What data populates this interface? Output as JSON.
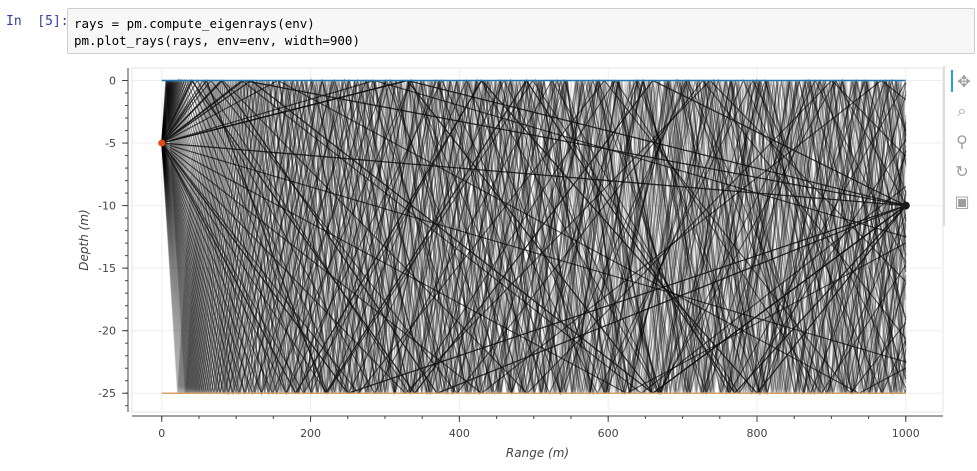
{
  "cell": {
    "prompt": "In  [5]:",
    "code_lines": [
      "rays = pm.compute_eigenrays(env)",
      "pm.plot_rays(rays, env=env, width=900)"
    ]
  },
  "toolbar": {
    "tools": [
      "pan-icon",
      "box-zoom-icon",
      "wheel-zoom-icon",
      "reset-icon",
      "save-icon"
    ]
  },
  "colors": {
    "surface": "#1f77b4",
    "bottom": "#d9a066",
    "source": "#e34a16",
    "receiver": "#1a1a1a",
    "ray": "#000000"
  },
  "chart_data": {
    "type": "line",
    "xlabel": "Range (m)",
    "ylabel": "Depth (m)",
    "xlim": [
      -40,
      1050
    ],
    "ylim": [
      -26.5,
      1
    ],
    "x_ticks": [
      0,
      200,
      400,
      600,
      800,
      1000
    ],
    "y_ticks": [
      0,
      -5,
      -10,
      -15,
      -20,
      -25
    ],
    "surface_depth": 0,
    "bottom_depth": -25,
    "range": [
      0,
      1000
    ],
    "source": {
      "x": 0,
      "y": -5
    },
    "receiver": {
      "x": 1000,
      "y": -10
    },
    "grid": true
  }
}
